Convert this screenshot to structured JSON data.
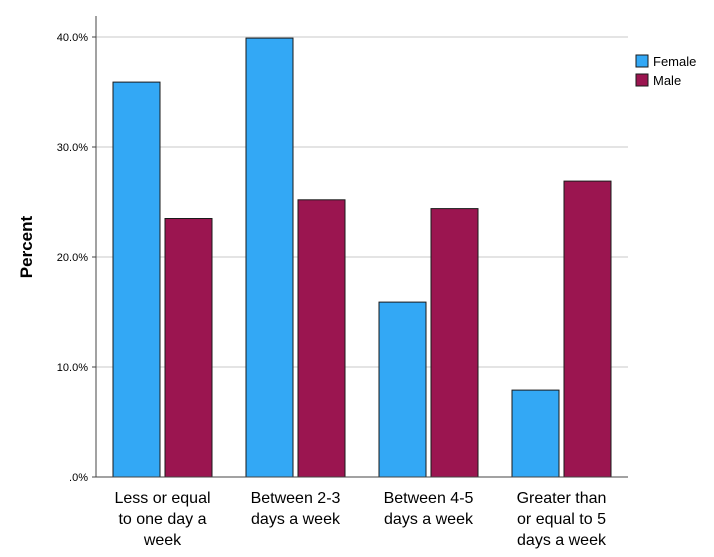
{
  "chart_data": {
    "type": "bar",
    "ylabel": "Percent",
    "xlabel": "",
    "ylim": [
      0,
      42
    ],
    "yticks": [
      0,
      10,
      20,
      30,
      40
    ],
    "ytick_labels": [
      ".0%",
      "10.0%",
      "20.0%",
      "30.0%",
      "40.0%"
    ],
    "grid": true,
    "legend_position": "top-right",
    "categories": [
      [
        "Less or equal",
        "to one day a",
        "week"
      ],
      [
        "Between 2-3",
        "days a week"
      ],
      [
        "Between 4-5",
        "days a week"
      ],
      [
        "Greater than",
        "or equal to 5",
        "days a week"
      ]
    ],
    "series": [
      {
        "name": "Female",
        "color": "#33a8f5",
        "values": [
          35.9,
          39.9,
          15.9,
          7.9
        ]
      },
      {
        "name": "Male",
        "color": "#9b1550",
        "values": [
          23.5,
          25.2,
          24.4,
          26.9
        ]
      }
    ]
  }
}
